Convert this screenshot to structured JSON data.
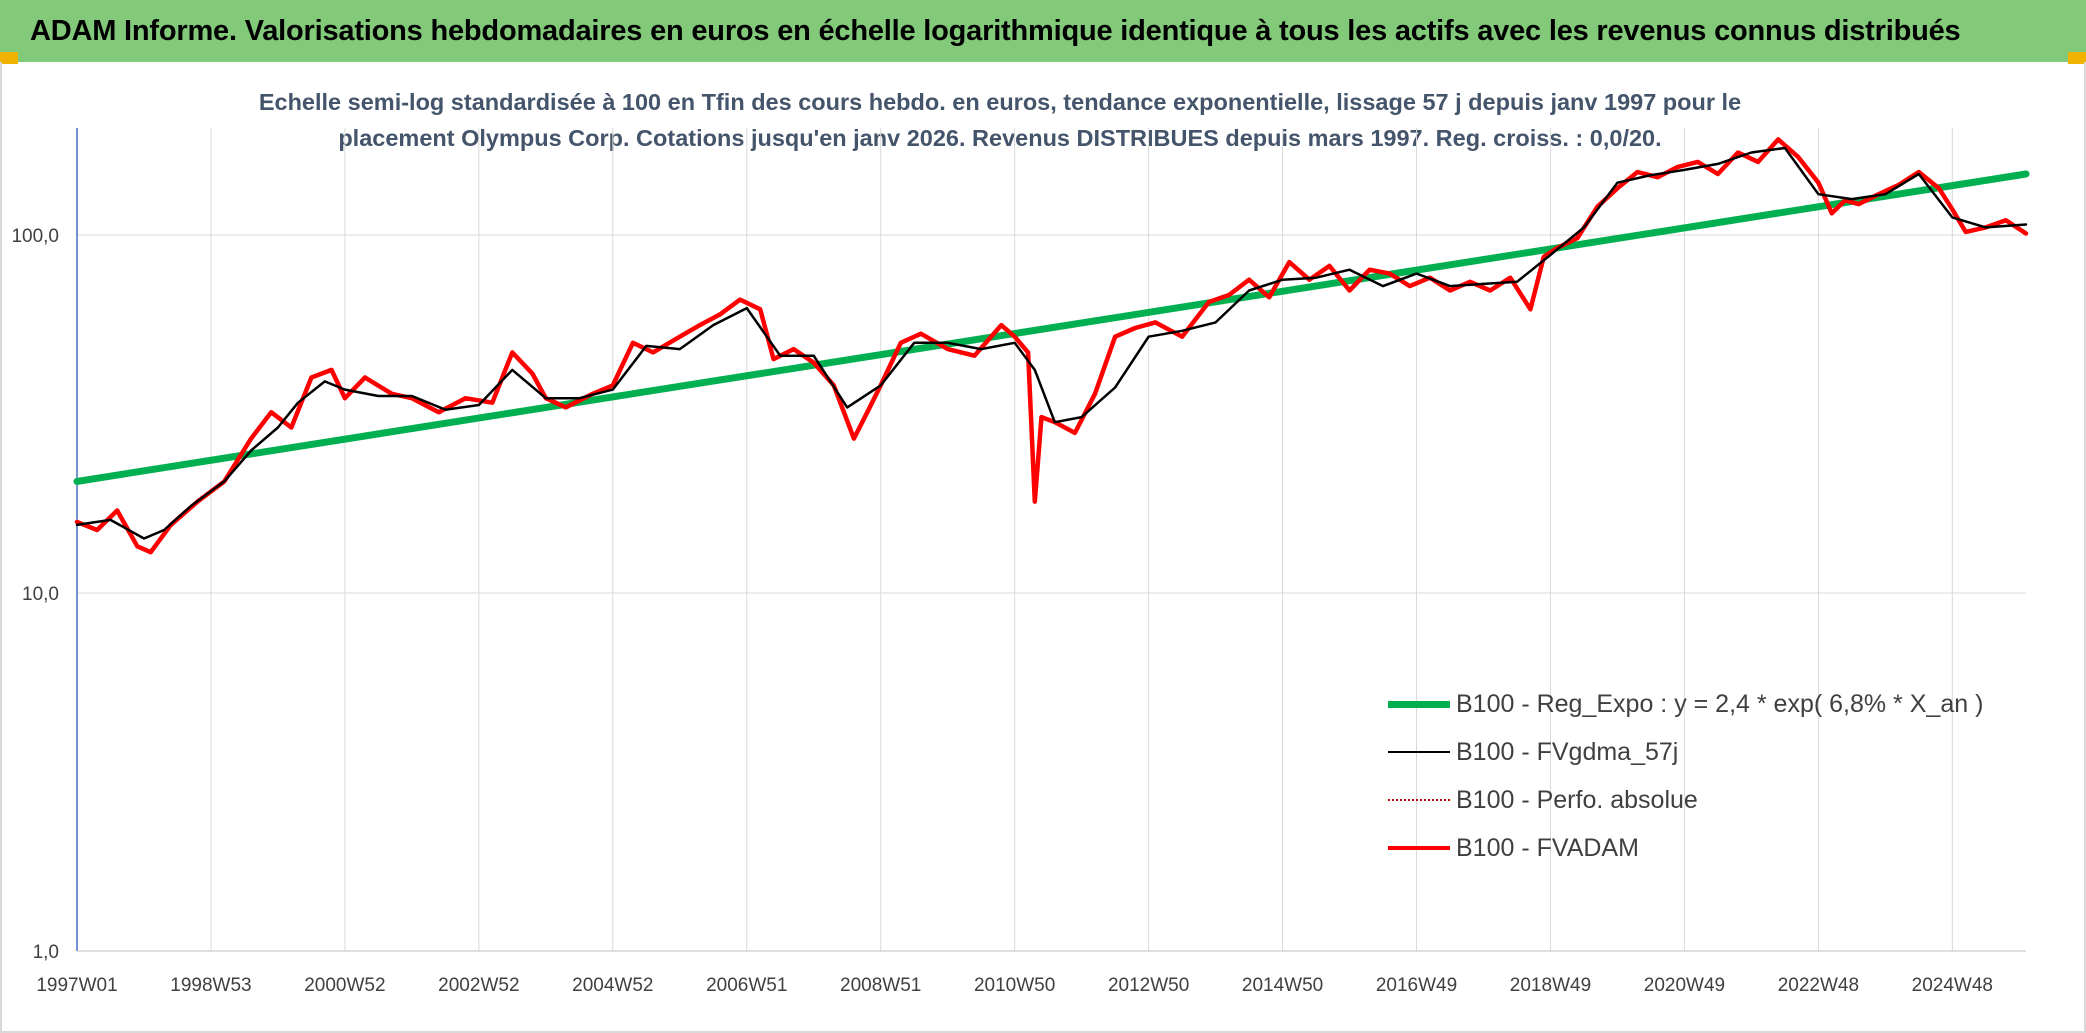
{
  "header": {
    "title": "ADAM Informe. Valorisations hebdomadaires en euros en échelle logarithmique identique à tous les actifs avec les revenus connus distribués"
  },
  "chart_data": {
    "type": "line",
    "title_line1": "Echelle semi-log standardisée à 100 en Tfin des cours hebdo. en euros, tendance exponentielle, lissage 57 j depuis janv 1997 pour le",
    "title_line2": "placement Olympus Corp. Cotations jusqu'en janv 2026. Revenus DISTRIBUES depuis mars 1997. Reg. croiss. : 0,0/20.",
    "y_scale": "log",
    "ylim": [
      1,
      200
    ],
    "y_ticks": [
      {
        "value": 1,
        "label": "1,0"
      },
      {
        "value": 10,
        "label": "10,0"
      },
      {
        "value": 100,
        "label": "100,0"
      }
    ],
    "xlim": [
      1997.0,
      2026.1
    ],
    "x_ticks": [
      {
        "value": 1997.0,
        "label": "1997W01"
      },
      {
        "value": 1999.0,
        "label": "1998W53"
      },
      {
        "value": 2001.0,
        "label": "2000W52"
      },
      {
        "value": 2003.0,
        "label": "2002W52"
      },
      {
        "value": 2005.0,
        "label": "2004W52"
      },
      {
        "value": 2007.0,
        "label": "2006W51"
      },
      {
        "value": 2009.0,
        "label": "2008W51"
      },
      {
        "value": 2011.0,
        "label": "2010W50"
      },
      {
        "value": 2013.0,
        "label": "2012W50"
      },
      {
        "value": 2015.0,
        "label": "2014W50"
      },
      {
        "value": 2017.0,
        "label": "2016W49"
      },
      {
        "value": 2019.0,
        "label": "2018W49"
      },
      {
        "value": 2021.0,
        "label": "2020W49"
      },
      {
        "value": 2023.0,
        "label": "2022W48"
      },
      {
        "value": 2025.0,
        "label": "2024W48"
      }
    ],
    "grid": "vertical-and-horizontal",
    "legend_position": "bottom-right",
    "series": [
      {
        "name": "B100 - Reg_Expo : y = 2,4 * exp( 6,8% *  X_an )",
        "color": "#00b050",
        "style": "solid-thick",
        "x": [
          1997.0,
          2026.1
        ],
        "values": [
          20.5,
          148
        ]
      },
      {
        "name": "B100 - FVgdma_57j",
        "color": "#000000",
        "style": "solid",
        "x": [
          1997.0,
          1997.5,
          1998.0,
          1998.3,
          1998.7,
          1999.2,
          1999.6,
          2000.0,
          2000.3,
          2000.7,
          2001.0,
          2001.5,
          2002.0,
          2002.5,
          2003.0,
          2003.5,
          2004.0,
          2004.5,
          2005.0,
          2005.5,
          2006.0,
          2006.5,
          2007.0,
          2007.5,
          2008.0,
          2008.5,
          2009.0,
          2009.5,
          2010.0,
          2010.5,
          2011.0,
          2011.3,
          2011.6,
          2012.0,
          2012.5,
          2013.0,
          2013.5,
          2014.0,
          2014.5,
          2015.0,
          2015.5,
          2016.0,
          2016.5,
          2017.0,
          2017.5,
          2018.0,
          2018.5,
          2019.0,
          2019.5,
          2020.0,
          2020.5,
          2021.0,
          2021.5,
          2022.0,
          2022.5,
          2023.0,
          2023.5,
          2024.0,
          2024.5,
          2025.0,
          2025.5,
          2026.1
        ],
        "values": [
          15.5,
          16.0,
          14.2,
          15.0,
          17.5,
          20.5,
          25.0,
          29.0,
          34.0,
          39.0,
          37.0,
          35.5,
          35.5,
          32.5,
          33.5,
          42.0,
          35.0,
          35.0,
          37.0,
          49.0,
          48.0,
          56.0,
          62.5,
          46.0,
          46.0,
          33.0,
          38.0,
          50.0,
          50.0,
          48.0,
          50.0,
          42.0,
          30.0,
          31.0,
          37.5,
          52.0,
          54.0,
          57.0,
          70.0,
          75.0,
          76.0,
          80.0,
          72.0,
          78.0,
          72.0,
          73.0,
          74.0,
          88.0,
          105.0,
          140.0,
          147.0,
          152.0,
          158.0,
          170.0,
          175.0,
          130.0,
          126.0,
          130.0,
          148.0,
          112.0,
          105.0,
          107.0
        ]
      },
      {
        "name": "B100 - Perfo. absolue",
        "color": "#c00000",
        "style": "dotted",
        "x": [],
        "values": []
      },
      {
        "name": "B100 - FVADAM",
        "color": "#ff0000",
        "style": "solid-thick",
        "x": [
          1997.0,
          1997.3,
          1997.6,
          1997.9,
          1998.1,
          1998.4,
          1998.8,
          1999.2,
          1999.6,
          1999.9,
          2000.2,
          2000.5,
          2000.8,
          2001.0,
          2001.3,
          2001.7,
          2002.0,
          2002.4,
          2002.8,
          2003.2,
          2003.5,
          2003.8,
          2004.0,
          2004.3,
          2004.7,
          2005.0,
          2005.3,
          2005.6,
          2006.0,
          2006.3,
          2006.6,
          2006.9,
          2007.2,
          2007.4,
          2007.7,
          2008.0,
          2008.3,
          2008.6,
          2008.8,
          2009.0,
          2009.3,
          2009.6,
          2010.0,
          2010.4,
          2010.8,
          2011.0,
          2011.2,
          2011.3,
          2011.4,
          2011.6,
          2011.9,
          2012.2,
          2012.5,
          2012.8,
          2013.1,
          2013.5,
          2013.9,
          2014.2,
          2014.5,
          2014.8,
          2015.1,
          2015.4,
          2015.7,
          2016.0,
          2016.3,
          2016.6,
          2016.9,
          2017.2,
          2017.5,
          2017.8,
          2018.1,
          2018.4,
          2018.7,
          2018.9,
          2019.1,
          2019.4,
          2019.7,
          2020.0,
          2020.3,
          2020.6,
          2020.9,
          2021.2,
          2021.5,
          2021.8,
          2022.1,
          2022.4,
          2022.7,
          2023.0,
          2023.2,
          2023.4,
          2023.6,
          2023.9,
          2024.2,
          2024.5,
          2024.8,
          2025.0,
          2025.2,
          2025.5,
          2025.8,
          2026.1
        ],
        "values": [
          15.8,
          15.0,
          17.0,
          13.5,
          13.0,
          15.5,
          18.0,
          20.5,
          27.0,
          32.0,
          29.0,
          40.0,
          42.0,
          35.0,
          40.0,
          36.0,
          35.0,
          32.0,
          35.0,
          34.0,
          47.0,
          41.0,
          35.0,
          33.0,
          36.0,
          38.0,
          50.0,
          47.0,
          52.0,
          56.0,
          60.0,
          66.0,
          62.0,
          45.0,
          48.0,
          44.0,
          38.0,
          27.0,
          32.0,
          38.0,
          50.0,
          53.0,
          48.0,
          46.0,
          56.0,
          52.0,
          47.0,
          18.0,
          31.0,
          30.0,
          28.0,
          36.0,
          52.0,
          55.0,
          57.0,
          52.0,
          65.0,
          68.0,
          75.0,
          67.0,
          84.0,
          75.0,
          82.0,
          70.0,
          80.0,
          78.0,
          72.0,
          76.0,
          70.0,
          74.0,
          70.0,
          76.0,
          62.0,
          87.0,
          92.0,
          98.0,
          120.0,
          135.0,
          150.0,
          145.0,
          155.0,
          160.0,
          148.0,
          170.0,
          160.0,
          185.0,
          165.0,
          140.0,
          115.0,
          125.0,
          122.0,
          130.0,
          138.0,
          150.0,
          135.0,
          118.0,
          102.0,
          105.0,
          110.0,
          101.0
        ]
      }
    ]
  }
}
